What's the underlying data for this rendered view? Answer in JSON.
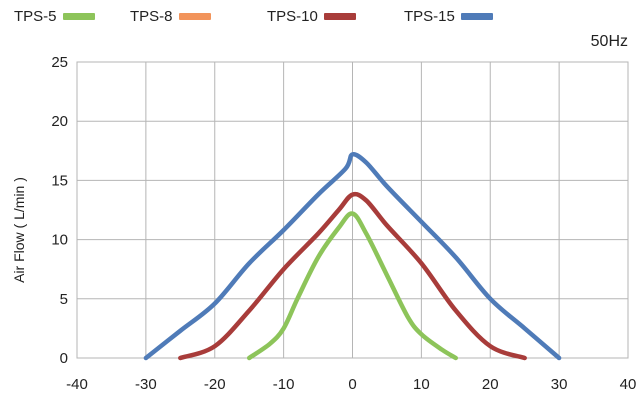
{
  "chart_data": {
    "type": "line",
    "title": "",
    "note": "50Hz",
    "xlabel": "",
    "ylabel": "Air Flow ( L/min )",
    "xlim": [
      -40,
      40
    ],
    "ylim": [
      0,
      25
    ],
    "xticks": [
      -40,
      -30,
      -20,
      -10,
      0,
      10,
      20,
      30,
      40
    ],
    "yticks": [
      0,
      5,
      10,
      15,
      20,
      25
    ],
    "grid": true,
    "legend_position": "top",
    "legend": [
      {
        "name": "TPS-5",
        "color": "#8dc45a"
      },
      {
        "name": "TPS-8",
        "color": "#f2945b"
      },
      {
        "name": "TPS-10",
        "color": "#a83c3a"
      },
      {
        "name": "TPS-15",
        "color": "#4f7bb8"
      }
    ],
    "series": [
      {
        "name": "TPS-5",
        "color": "#8dc45a",
        "points": [
          [
            -15,
            0
          ],
          [
            -12,
            1.2
          ],
          [
            -10,
            2.5
          ],
          [
            -8,
            5
          ],
          [
            -5,
            8.5
          ],
          [
            -2,
            11
          ],
          [
            0,
            12.2
          ],
          [
            2,
            10.5
          ],
          [
            5,
            7
          ],
          [
            8,
            3.5
          ],
          [
            10,
            2
          ],
          [
            13,
            0.7
          ],
          [
            15,
            0
          ]
        ]
      },
      {
        "name": "TPS-10",
        "color": "#a83c3a",
        "points": [
          [
            -25,
            0
          ],
          [
            -20,
            1
          ],
          [
            -15,
            4
          ],
          [
            -10,
            7.5
          ],
          [
            -5,
            10.5
          ],
          [
            -2,
            12.5
          ],
          [
            0,
            13.8
          ],
          [
            2,
            13.3
          ],
          [
            5,
            11.2
          ],
          [
            10,
            8
          ],
          [
            15,
            4
          ],
          [
            20,
            1
          ],
          [
            25,
            0
          ]
        ]
      },
      {
        "name": "TPS-15",
        "color": "#4f7bb8",
        "points": [
          [
            -30,
            0
          ],
          [
            -25,
            2.3
          ],
          [
            -20,
            4.6
          ],
          [
            -15,
            8
          ],
          [
            -10,
            10.8
          ],
          [
            -5,
            13.8
          ],
          [
            -1,
            16
          ],
          [
            0,
            17.2
          ],
          [
            2,
            16.5
          ],
          [
            5,
            14.5
          ],
          [
            10,
            11.5
          ],
          [
            15,
            8.5
          ],
          [
            20,
            5
          ],
          [
            25,
            2.5
          ],
          [
            30,
            0
          ]
        ]
      }
    ]
  }
}
